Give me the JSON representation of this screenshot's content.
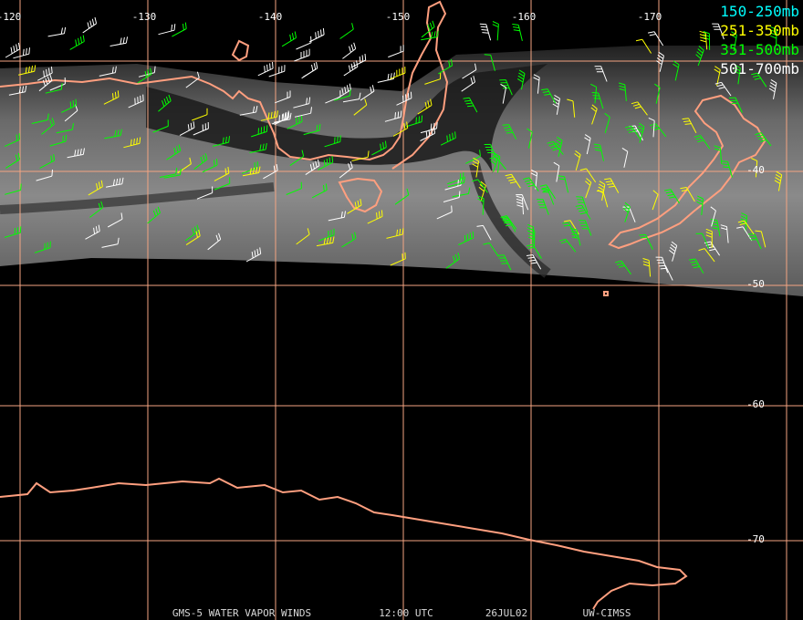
{
  "map": {
    "lon_labels": [
      "-120",
      "-130",
      "-140",
      "-150",
      "-160",
      "-170"
    ],
    "lat_labels": [
      "-40",
      "-50",
      "-60",
      "-70"
    ],
    "legend": [
      {
        "label": "150-250mb",
        "color": "#00ffff"
      },
      {
        "label": "251-350mb",
        "color": "#ffff00"
      },
      {
        "label": "351-500mb",
        "color": "#00ff00"
      },
      {
        "label": "501-700mb",
        "color": "#ffffff"
      }
    ],
    "footer": [
      "GMS-5 WATER VAPOR WINDS",
      "12:00 UTC",
      "26JUL02",
      "UW-CIMSS"
    ]
  }
}
